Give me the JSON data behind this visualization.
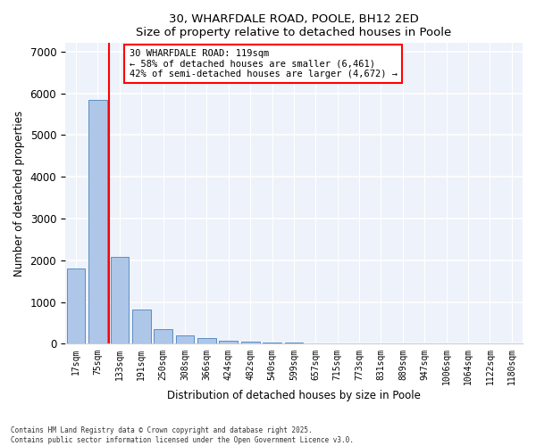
{
  "title1": "30, WHARFDALE ROAD, POOLE, BH12 2ED",
  "title2": "Size of property relative to detached houses in Poole",
  "xlabel": "Distribution of detached houses by size in Poole",
  "ylabel": "Number of detached properties",
  "categories": [
    "17sqm",
    "75sqm",
    "133sqm",
    "191sqm",
    "250sqm",
    "308sqm",
    "366sqm",
    "424sqm",
    "482sqm",
    "540sqm",
    "599sqm",
    "657sqm",
    "715sqm",
    "773sqm",
    "831sqm",
    "889sqm",
    "947sqm",
    "1006sqm",
    "1064sqm",
    "1122sqm",
    "1180sqm"
  ],
  "values": [
    1800,
    5850,
    2080,
    820,
    360,
    200,
    130,
    75,
    55,
    40,
    30,
    20,
    15,
    10,
    8,
    5,
    4,
    3,
    2,
    2,
    1
  ],
  "bar_color": "#aec6e8",
  "bar_edge_color": "#5a8fc2",
  "vline_color": "red",
  "vline_position": 1.5,
  "annotation_text": "30 WHARFDALE ROAD: 119sqm\n← 58% of detached houses are smaller (6,461)\n42% of semi-detached houses are larger (4,672) →",
  "annotation_box_color": "white",
  "annotation_box_edge": "red",
  "ylim": [
    0,
    7200
  ],
  "yticks": [
    0,
    1000,
    2000,
    3000,
    4000,
    5000,
    6000,
    7000
  ],
  "background_color": "#eef2fa",
  "footer1": "Contains HM Land Registry data © Crown copyright and database right 2025.",
  "footer2": "Contains public sector information licensed under the Open Government Licence v3.0."
}
